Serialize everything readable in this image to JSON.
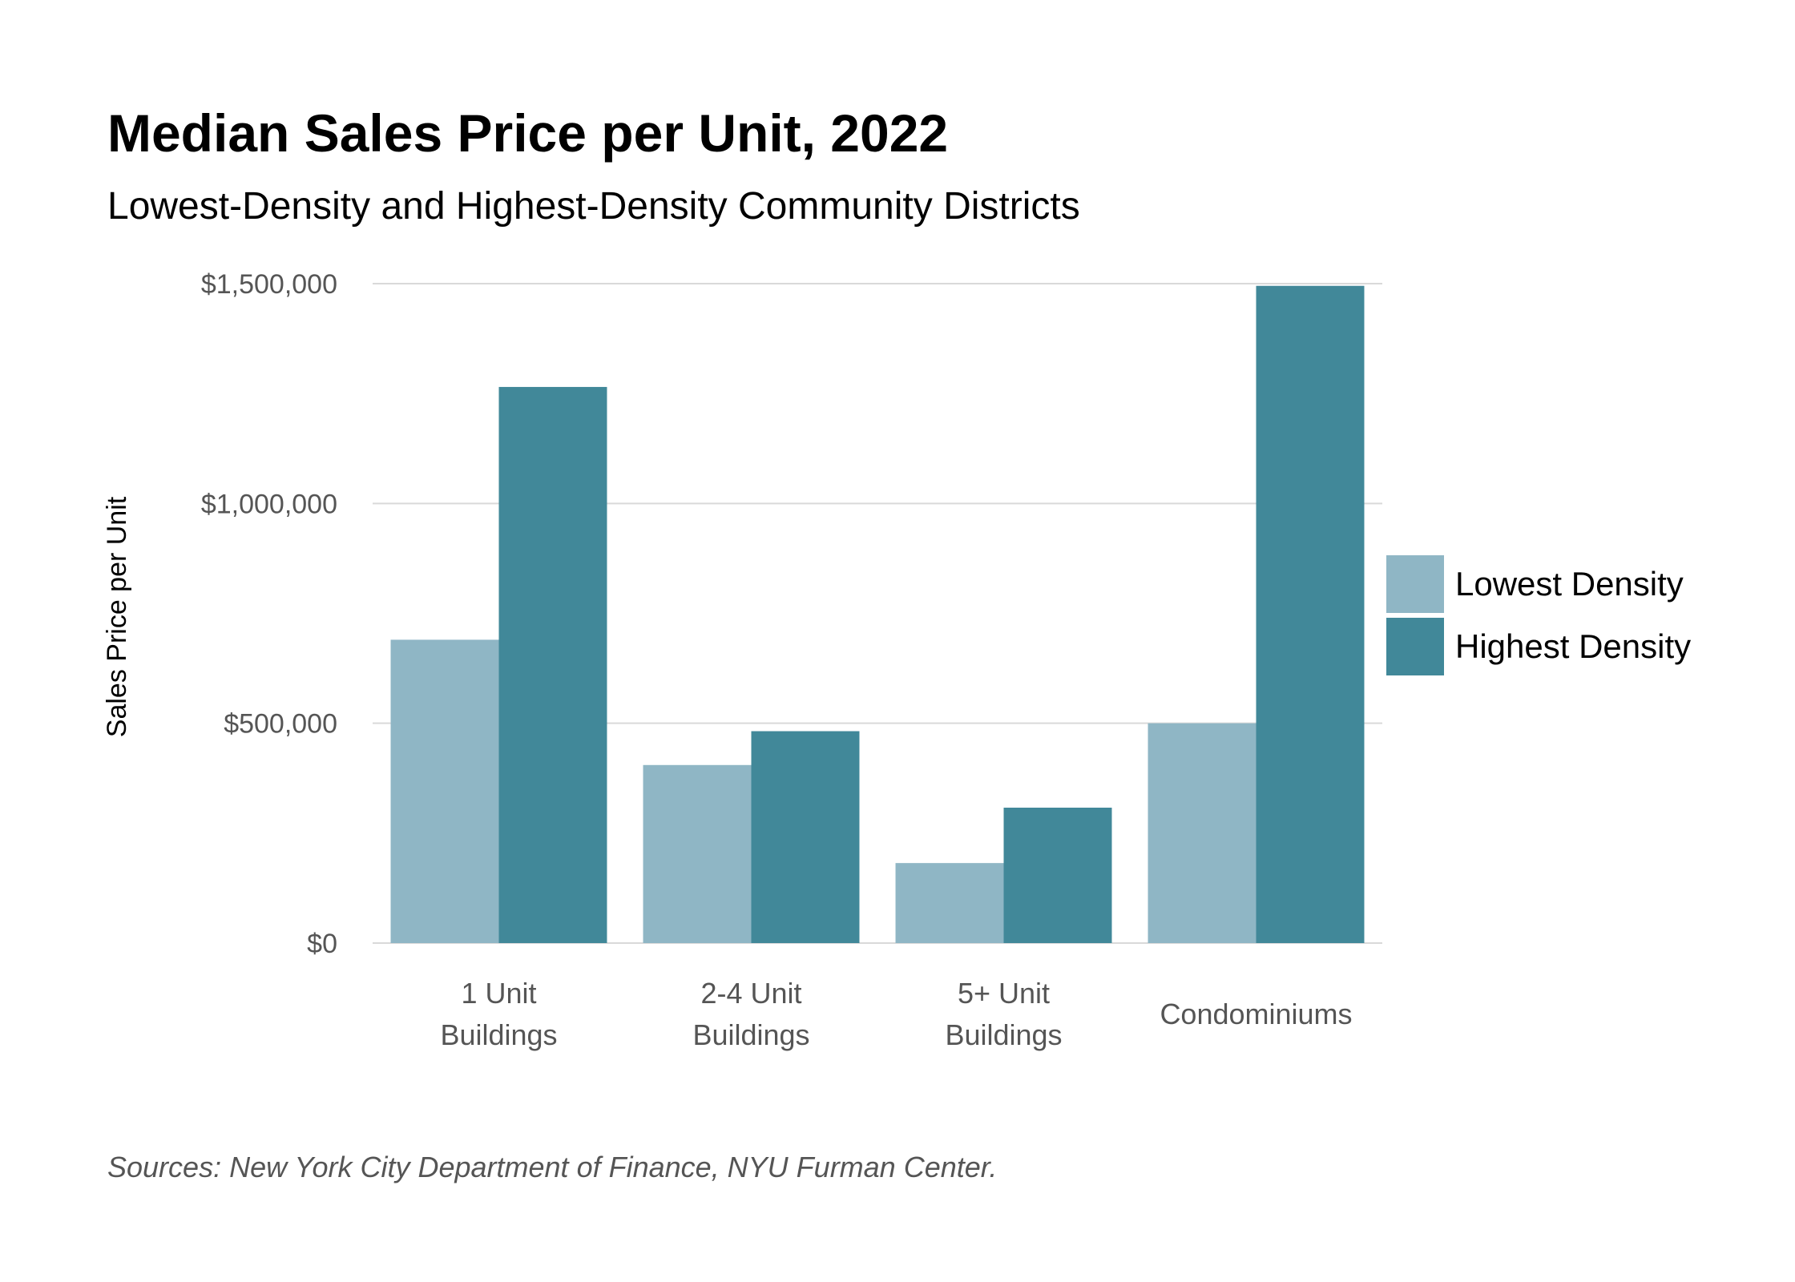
{
  "colors": {
    "lowest": "#8fb6c5",
    "highest": "#418899",
    "grid": "#d9d9d9",
    "tick_text": "#555555"
  },
  "source_note": "Sources: New York City Department of Finance, NYU Furman Center.",
  "chart_data": {
    "type": "bar",
    "title": "Median Sales Price per Unit, 2022",
    "subtitle": "Lowest-Density and Highest-Density Community Districts",
    "xlabel": "",
    "ylabel": "Sales Price per Unit",
    "categories": [
      [
        "1 Unit",
        "Buildings"
      ],
      [
        "2-4 Unit",
        "Buildings"
      ],
      [
        "5+ Unit",
        "Buildings"
      ],
      [
        "Condominiums"
      ]
    ],
    "series": [
      {
        "name": "Lowest Density",
        "color": "#8fb6c5",
        "values": [
          690000,
          405000,
          182000,
          500000
        ]
      },
      {
        "name": "Highest Density",
        "color": "#418899",
        "values": [
          1265000,
          482000,
          308000,
          1495000
        ]
      }
    ],
    "ylim": [
      0,
      1500000
    ],
    "yticks": [
      0,
      500000,
      1000000,
      1500000
    ],
    "ytick_labels": [
      "$0",
      "$500,000",
      "$1,000,000",
      "$1,500,000"
    ],
    "grid": true,
    "legend": "right"
  }
}
